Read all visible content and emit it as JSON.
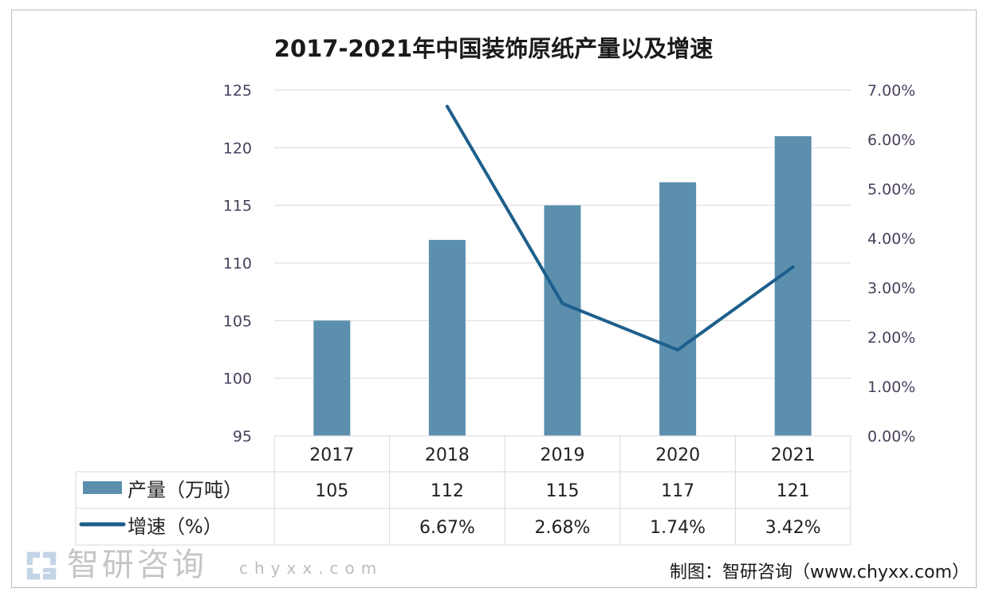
{
  "chart_data": {
    "type": "bar+line",
    "title": "2017-2021年中国装饰原纸产量以及增速",
    "categories": [
      "2017",
      "2018",
      "2019",
      "2020",
      "2021"
    ],
    "series": [
      {
        "name": "产量（万吨）",
        "type": "bar",
        "axis": "left",
        "values": [
          105,
          112,
          115,
          117,
          121
        ],
        "labels": [
          "105",
          "112",
          "115",
          "117",
          "121"
        ],
        "color": "#5b8fad"
      },
      {
        "name": "增速（%）",
        "type": "line",
        "axis": "right",
        "values": [
          null,
          6.67,
          2.68,
          1.74,
          3.42
        ],
        "labels": [
          "",
          "6.67%",
          "2.68%",
          "1.74%",
          "3.42%"
        ],
        "color": "#1d5f8c"
      }
    ],
    "left_axis": {
      "ylim": [
        95,
        125
      ],
      "ticks": [
        "95",
        "100",
        "105",
        "110",
        "115",
        "120",
        "125"
      ]
    },
    "right_axis": {
      "ylim": [
        0,
        7
      ],
      "ticks": [
        "0.00%",
        "1.00%",
        "2.00%",
        "3.00%",
        "4.00%",
        "5.00%",
        "6.00%",
        "7.00%"
      ]
    },
    "grid": true,
    "legend": "data-table-bottom"
  },
  "source": "制图：智研咨询（www.chyxx.com）",
  "watermark": {
    "text": "智研咨询",
    "url": "chyxx.com"
  }
}
